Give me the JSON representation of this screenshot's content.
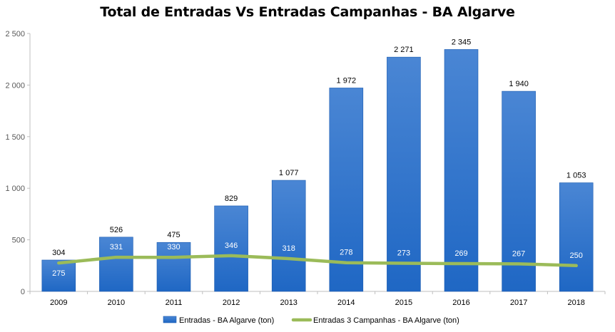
{
  "chart_data": {
    "type": "bar",
    "title": "Total de Entradas Vs Entradas Campanhas - BA Algarve",
    "xlabel": "",
    "ylabel": "",
    "categories": [
      "2009",
      "2010",
      "2011",
      "2012",
      "2013",
      "2014",
      "2015",
      "2016",
      "2017",
      "2018"
    ],
    "series": [
      {
        "name": "Entradas - BA Algarve (ton)",
        "type": "bar",
        "values": [
          304,
          526,
          475,
          829,
          1077,
          1972,
          2271,
          2345,
          1940,
          1053
        ],
        "value_labels": [
          "304",
          "526",
          "475",
          "829",
          "1 077",
          "1 972",
          "2 271",
          "2 345",
          "1 940",
          "1 053"
        ]
      },
      {
        "name": "Entradas 3 Campanhas - BA Algarve (ton)",
        "type": "line",
        "values": [
          275,
          331,
          330,
          346,
          318,
          278,
          273,
          269,
          267,
          250
        ],
        "value_labels": [
          "275",
          "331",
          "330",
          "346",
          "318",
          "278",
          "273",
          "269",
          "267",
          "250"
        ]
      }
    ],
    "ylim": [
      0,
      2500
    ],
    "yticks": [
      0,
      500,
      1000,
      1500,
      2000,
      2500
    ],
    "ytick_labels": [
      "0",
      "500",
      "1 000",
      "1 500",
      "2 000",
      "2 500"
    ],
    "grid": false,
    "legend_position": "bottom",
    "colors": {
      "bar_top": "#4a86d4",
      "bar_bottom": "#1f67c4",
      "line": "#9bbb59",
      "axis": "#bfbfbf"
    }
  }
}
